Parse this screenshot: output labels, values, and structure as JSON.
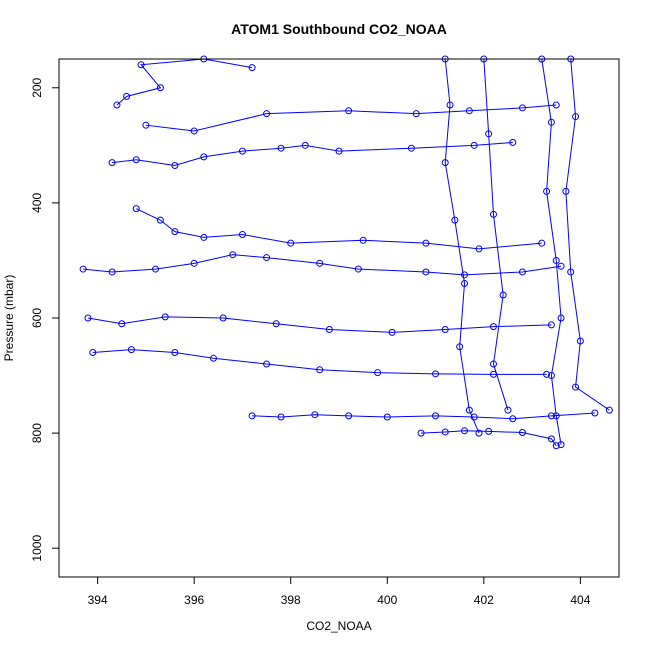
{
  "chart_data": {
    "type": "line",
    "title": "ATOM1 Southbound CO2_NOAA",
    "xlabel": "CO2_NOAA",
    "ylabel": "Pressure (mbar)",
    "xlim": [
      393.2,
      404.8
    ],
    "ylim": [
      1050,
      150
    ],
    "y_inverted": true,
    "xticks": [
      394,
      396,
      398,
      400,
      402,
      404
    ],
    "yticks": [
      200,
      400,
      600,
      800,
      1000
    ],
    "grid": false,
    "legend": "none",
    "marker": "open-circle",
    "series_color": "#0000ff",
    "series": [
      {
        "points_note_free": true,
        "segments": [
          [
            [
              394.4,
              230
            ],
            [
              394.6,
              215
            ],
            [
              395.3,
              200
            ],
            [
              394.9,
              160
            ],
            [
              396.2,
              150
            ],
            [
              397.2,
              165
            ]
          ],
          [
            [
              394.3,
              330
            ],
            [
              394.8,
              325
            ],
            [
              395.6,
              335
            ],
            [
              396.2,
              320
            ],
            [
              397.0,
              310
            ],
            [
              397.8,
              305
            ],
            [
              398.3,
              300
            ],
            [
              399.0,
              310
            ],
            [
              400.5,
              305
            ],
            [
              401.8,
              300
            ],
            [
              402.6,
              295
            ]
          ],
          [
            [
              395.0,
              265
            ],
            [
              396.0,
              275
            ],
            [
              397.5,
              245
            ],
            [
              399.2,
              240
            ],
            [
              400.6,
              245
            ],
            [
              401.7,
              240
            ],
            [
              402.8,
              235
            ],
            [
              403.5,
              230
            ]
          ],
          [
            [
              394.8,
              410
            ],
            [
              395.3,
              430
            ],
            [
              395.6,
              450
            ],
            [
              396.2,
              460
            ],
            [
              397.0,
              455
            ],
            [
              398.0,
              470
            ],
            [
              399.5,
              465
            ],
            [
              400.8,
              470
            ],
            [
              401.9,
              480
            ],
            [
              403.2,
              470
            ]
          ],
          [
            [
              393.7,
              515
            ],
            [
              394.3,
              520
            ],
            [
              395.2,
              515
            ],
            [
              396.0,
              505
            ],
            [
              396.8,
              490
            ],
            [
              397.5,
              495
            ],
            [
              398.6,
              505
            ],
            [
              399.4,
              515
            ],
            [
              400.8,
              520
            ],
            [
              401.6,
              525
            ],
            [
              402.8,
              520
            ],
            [
              403.6,
              510
            ]
          ],
          [
            [
              393.8,
              600
            ],
            [
              394.5,
              610
            ],
            [
              395.4,
              598
            ],
            [
              396.6,
              600
            ],
            [
              397.7,
              610
            ],
            [
              398.8,
              620
            ],
            [
              400.1,
              625
            ],
            [
              401.2,
              620
            ],
            [
              402.2,
              615
            ],
            [
              403.4,
              612
            ]
          ],
          [
            [
              393.9,
              660
            ],
            [
              394.7,
              655
            ],
            [
              395.6,
              660
            ],
            [
              396.4,
              670
            ],
            [
              397.5,
              680
            ],
            [
              398.6,
              690
            ],
            [
              399.8,
              695
            ],
            [
              401.0,
              697
            ],
            [
              402.2,
              698
            ],
            [
              403.3,
              698
            ]
          ],
          [
            [
              397.2,
              770
            ],
            [
              397.8,
              772
            ],
            [
              398.5,
              768
            ],
            [
              399.2,
              770
            ],
            [
              400.0,
              772
            ],
            [
              401.0,
              770
            ],
            [
              401.8,
              772
            ],
            [
              402.6,
              775
            ],
            [
              403.4,
              770
            ],
            [
              404.3,
              765
            ]
          ],
          [
            [
              400.7,
              800
            ],
            [
              401.2,
              798
            ],
            [
              401.6,
              796
            ],
            [
              402.1,
              797
            ],
            [
              402.8,
              799
            ],
            [
              403.4,
              810
            ],
            [
              403.5,
              822
            ]
          ],
          [
            [
              401.2,
              150
            ],
            [
              401.3,
              230
            ],
            [
              401.2,
              330
            ],
            [
              401.4,
              430
            ],
            [
              401.6,
              540
            ],
            [
              401.5,
              650
            ],
            [
              401.7,
              760
            ],
            [
              401.9,
              800
            ]
          ],
          [
            [
              403.2,
              150
            ],
            [
              403.4,
              260
            ],
            [
              403.3,
              380
            ],
            [
              403.5,
              500
            ],
            [
              403.6,
              600
            ],
            [
              403.4,
              700
            ],
            [
              403.5,
              770
            ],
            [
              403.6,
              820
            ]
          ],
          [
            [
              402.0,
              150
            ],
            [
              402.1,
              280
            ],
            [
              402.2,
              420
            ],
            [
              402.4,
              560
            ],
            [
              402.2,
              680
            ],
            [
              402.5,
              760
            ]
          ],
          [
            [
              403.8,
              150
            ],
            [
              403.9,
              250
            ],
            [
              403.7,
              380
            ],
            [
              403.8,
              520
            ],
            [
              404.0,
              640
            ],
            [
              403.9,
              720
            ],
            [
              404.6,
              760
            ]
          ]
        ]
      }
    ]
  }
}
